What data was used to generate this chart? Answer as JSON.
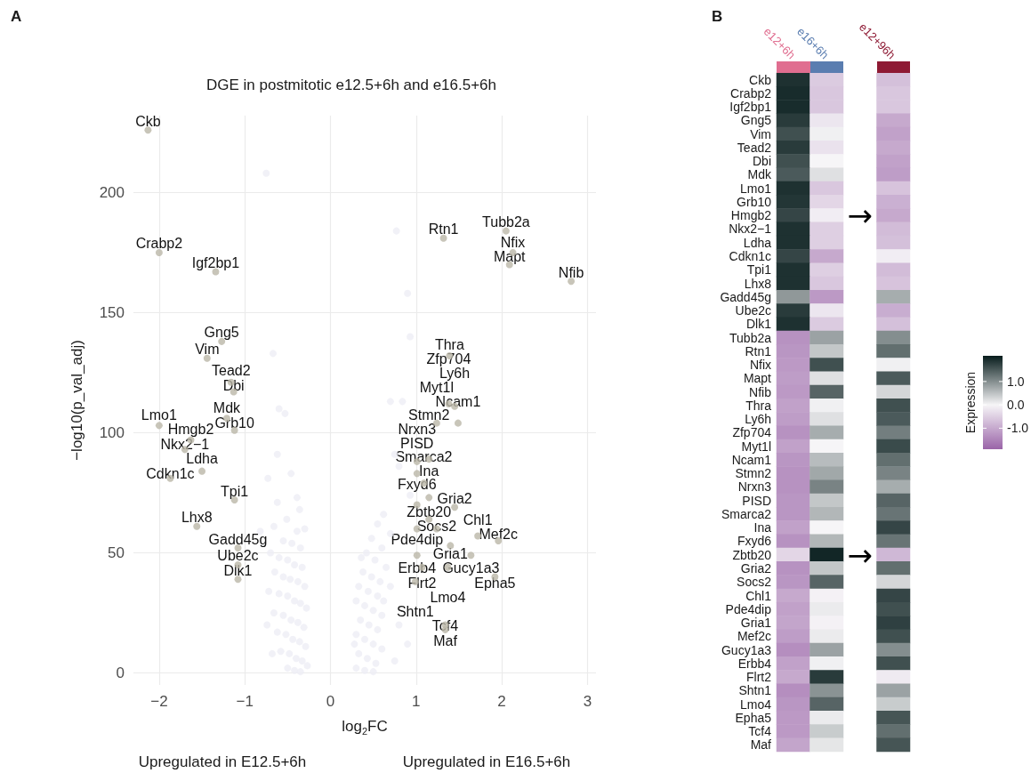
{
  "chart_data": [
    {
      "type": "scatter",
      "title": "DGE in postmitotic e12.5+6h and e16.5+6h",
      "xlabel": "log$_{2}$FC",
      "ylabel": "−log10(p_val_adj)",
      "xlim": [
        -2.3,
        3.1
      ],
      "ylim": [
        -5,
        232
      ],
      "xticks": [
        {
          "value": -2,
          "label": "−2"
        },
        {
          "value": -1,
          "label": "−1"
        },
        0,
        1,
        2,
        3
      ],
      "yticks": [
        0,
        50,
        100,
        150,
        200
      ],
      "grid": true,
      "marker": "circle",
      "series": [
        {
          "color": "#eeedf5",
          "x": [
            -0.75,
            -0.67,
            -0.6,
            -0.53,
            -0.62,
            -0.46,
            -0.73,
            -0.39,
            -0.62,
            -0.51,
            -0.82,
            -0.66,
            -0.39,
            -0.55,
            -0.45,
            -0.35,
            -0.7,
            -0.6,
            -0.5,
            -0.42,
            -0.33,
            -0.65,
            -0.55,
            -0.47,
            -0.38,
            -0.3,
            -0.72,
            -0.6,
            -0.5,
            -0.42,
            -0.35,
            -0.28,
            -0.66,
            -0.55,
            -0.46,
            -0.38,
            -0.31,
            -0.62,
            -0.52,
            -0.44,
            -0.36,
            -0.29,
            -0.58,
            -0.48,
            -0.4,
            -0.33,
            -0.27,
            -0.5,
            -0.42,
            -0.35,
            -0.68,
            -0.74,
            -0.3,
            -0.36,
            0.77,
            0.9,
            0.93,
            0.7,
            0.84,
            0.75,
            0.8,
            0.93,
            0.62,
            0.55,
            0.7,
            0.48,
            0.6,
            0.42,
            0.52,
            0.65,
            0.38,
            0.48,
            0.58,
            0.33,
            0.44,
            0.55,
            0.3,
            0.4,
            0.5,
            0.6,
            0.35,
            0.45,
            0.55,
            0.3,
            0.4,
            0.5,
            0.6,
            0.33,
            0.43,
            0.53,
            0.3,
            0.4,
            0.5,
            0.62,
            0.7,
            0.8,
            0.9,
            0.75,
            0.28,
            0.36
          ],
          "values": [
            208,
            133,
            110,
            108,
            91,
            83,
            81,
            73,
            71,
            64,
            59,
            61,
            59,
            55,
            54,
            52,
            50,
            48,
            47,
            45,
            44,
            42,
            40,
            39,
            38,
            36,
            34,
            33,
            32,
            30,
            29,
            27,
            25,
            24,
            22,
            21,
            19,
            17,
            16,
            14,
            13,
            11,
            9,
            8,
            6,
            5,
            3,
            2,
            1,
            0.5,
            8,
            20,
            60,
            68,
            184,
            158,
            140,
            113,
            113,
            91,
            86,
            74,
            66,
            62,
            58,
            56,
            52,
            50,
            47,
            44,
            42,
            40,
            38,
            36,
            34,
            32,
            30,
            28,
            26,
            24,
            22,
            20,
            18,
            16,
            14,
            12,
            10,
            8,
            6,
            4,
            2,
            1,
            0.5,
            30,
            36,
            20,
            12,
            5,
            12,
            48
          ]
        },
        {
          "color": "#bab6a8",
          "x": [
            -2.13,
            -2.0,
            -1.34,
            -1.27,
            -1.44,
            -1.16,
            -1.13,
            -1.21,
            -1.12,
            -2.0,
            -1.63,
            -1.7,
            -1.5,
            -1.87,
            -1.12,
            -1.56,
            -1.08,
            -1.08,
            -1.08,
            1.32,
            2.05,
            2.13,
            2.09,
            2.81,
            1.39,
            1.38,
            1.45,
            1.24,
            1.49,
            1.15,
            1.01,
            1.01,
            1.09,
            1.15,
            1.01,
            1.45,
            1.15,
            1.24,
            1.01,
            1.4,
            1.72,
            1.96,
            1.01,
            1.64,
            1.37,
            1.07,
            1.92,
            0.99,
            1.34,
            1.34
          ],
          "values": [
            226,
            175,
            167,
            138,
            131,
            121,
            117,
            106,
            101,
            103,
            97,
            93,
            84,
            81,
            72,
            61,
            52,
            45,
            39,
            181,
            184,
            175,
            170,
            163,
            132,
            112,
            111,
            104,
            104,
            89,
            88,
            83,
            79,
            73,
            70,
            69,
            64,
            60,
            60,
            53,
            57,
            55,
            49,
            49,
            44,
            44,
            40,
            38,
            20,
            18
          ]
        }
      ],
      "annotations": [
        "A",
        "Upregulated in E12.5+6h",
        "Upregulated in E16.5+6h",
        {
          "text": "Ckb",
          "x": -2.13,
          "y": 226
        },
        {
          "text": "Crabp2",
          "x": -2.0,
          "y": 175
        },
        {
          "text": "Igf2bp1",
          "x": -1.34,
          "y": 167
        },
        {
          "text": "Gng5",
          "x": -1.27,
          "y": 138
        },
        {
          "text": "Vim",
          "x": -1.44,
          "y": 131
        },
        {
          "text": "Tead2",
          "x": -1.16,
          "y": 121
        },
        {
          "text": "Dbi",
          "x": -1.13,
          "y": 117
        },
        {
          "text": "Mdk",
          "x": -1.21,
          "y": 106
        },
        {
          "text": "Grb10",
          "x": -1.12,
          "y": 101
        },
        {
          "text": "Lmo1",
          "x": -2.0,
          "y": 103
        },
        {
          "text": "Hmgb2",
          "x": -1.63,
          "y": 97
        },
        {
          "text": "Nkx2−1",
          "x": -1.7,
          "y": 93
        },
        {
          "text": "Ldha",
          "x": -1.5,
          "y": 84
        },
        {
          "text": "Cdkn1c",
          "x": -1.87,
          "y": 81
        },
        {
          "text": "Tpi1",
          "x": -1.12,
          "y": 72
        },
        {
          "text": "Lhx8",
          "x": -1.56,
          "y": 61
        },
        {
          "text": "Gadd45g",
          "x": -1.08,
          "y": 52
        },
        {
          "text": "Ube2c",
          "x": -1.08,
          "y": 45
        },
        {
          "text": "Dlk1",
          "x": -1.08,
          "y": 39
        },
        {
          "text": "Rtn1",
          "x": 1.32,
          "y": 181
        },
        {
          "text": "Tubb2a",
          "x": 2.05,
          "y": 184
        },
        {
          "text": "Nfix",
          "x": 2.13,
          "y": 175
        },
        {
          "text": "Mapt",
          "x": 2.09,
          "y": 170
        },
        {
          "text": "Nfib",
          "x": 2.81,
          "y": 163
        },
        {
          "text": "Thra",
          "x": 1.39,
          "y": 132
        },
        {
          "text": "Zfp704",
          "x": 1.38,
          "y": 112
        },
        {
          "text": "Ly6h",
          "x": 1.45,
          "y": 111
        },
        {
          "text": "Myt1l",
          "x": 1.24,
          "y": 104
        },
        {
          "text": "Ncam1",
          "x": 1.49,
          "y": 104
        },
        {
          "text": "Stmn2",
          "x": 1.15,
          "y": 89
        },
        {
          "text": "Nrxn3",
          "x": 1.01,
          "y": 88
        },
        {
          "text": "PISD",
          "x": 1.01,
          "y": 83
        },
        {
          "text": "Smarca2",
          "x": 1.09,
          "y": 79
        },
        {
          "text": "Ina",
          "x": 1.15,
          "y": 73
        },
        {
          "text": "Fxyd6",
          "x": 1.01,
          "y": 70
        },
        {
          "text": "Gria2",
          "x": 1.45,
          "y": 69
        },
        {
          "text": "Zbtb20",
          "x": 1.15,
          "y": 64
        },
        {
          "text": "Socs2",
          "x": 1.24,
          "y": 60
        },
        {
          "text": "Pde4dip",
          "x": 1.01,
          "y": 60
        },
        {
          "text": "Gria1",
          "x": 1.4,
          "y": 53
        },
        {
          "text": "Chl1",
          "x": 1.72,
          "y": 57
        },
        {
          "text": "Mef2c",
          "x": 1.96,
          "y": 55
        },
        {
          "text": "Erbb4",
          "x": 1.01,
          "y": 49
        },
        {
          "text": "Gucy1a3",
          "x": 1.64,
          "y": 49
        },
        {
          "text": "Lmo4",
          "x": 1.37,
          "y": 44
        },
        {
          "text": "Flrt2",
          "x": 1.07,
          "y": 44
        },
        {
          "text": "Epha5",
          "x": 1.92,
          "y": 40
        },
        {
          "text": "Shtn1",
          "x": 0.99,
          "y": 38
        },
        {
          "text": "Tcf4",
          "x": 1.34,
          "y": 20
        },
        {
          "text": "Maf",
          "x": 1.34,
          "y": 18
        }
      ]
    },
    {
      "type": "heatmap",
      "categories": [
        "e12+6h",
        "e16+6h",
        null,
        "e12+96h"
      ],
      "colors": [
        "#e06e90",
        "#5a7db0",
        null,
        "#8e1a34"
      ],
      "y_categories": [
        "Ckb",
        "Crabp2",
        "Igf2bp1",
        "Gng5",
        "Vim",
        "Tead2",
        "Dbi",
        "Mdk",
        "Lmo1",
        "Grb10",
        "Hmgb2",
        "Nkx2−1",
        "Ldha",
        "Cdkn1c",
        "Tpi1",
        "Lhx8",
        "Gadd45g",
        "Ube2c",
        "Dlk1",
        "Tubb2a",
        "Rtn1",
        "Nfix",
        "Mapt",
        "Nfib",
        "Thra",
        "Ly6h",
        "Zfp704",
        "Myt1l",
        "Ncam1",
        "Stmn2",
        "Nrxn3",
        "PISD",
        "Smarca2",
        "Ina",
        "Fxyd6",
        "Zbtb20",
        "Gria2",
        "Socs2",
        "Chl1",
        "Pde4dip",
        "Gria1",
        "Mef2c",
        "Gucy1a3",
        "Erbb4",
        "Flrt2",
        "Shtn1",
        "Lmo4",
        "Epha5",
        "Tcf4",
        "Maf"
      ],
      "cells": [
        [
          1.9,
          -0.55,
          null,
          -0.7
        ],
        [
          1.95,
          -0.6,
          null,
          -0.6
        ],
        [
          1.95,
          -0.6,
          null,
          -0.6
        ],
        [
          1.8,
          -0.2,
          null,
          -1.0
        ],
        [
          1.6,
          0.05,
          null,
          -1.1
        ],
        [
          1.8,
          -0.25,
          null,
          -1.0
        ],
        [
          1.6,
          0,
          null,
          -1.1
        ],
        [
          1.5,
          0.2,
          null,
          -1.15
        ],
        [
          1.9,
          -0.6,
          null,
          -0.65
        ],
        [
          1.85,
          -0.4,
          null,
          -0.9
        ],
        [
          1.7,
          -0.1,
          null,
          -1.0
        ],
        [
          1.9,
          -0.5,
          null,
          -0.75
        ],
        [
          1.9,
          -0.5,
          null,
          -0.7
        ],
        [
          1.7,
          -1.0,
          null,
          -0.1
        ],
        [
          1.9,
          -0.5,
          null,
          -0.75
        ],
        [
          1.9,
          -0.6,
          null,
          -0.65
        ],
        [
          0.9,
          -1.2,
          null,
          0.7
        ],
        [
          1.8,
          -0.2,
          null,
          -0.95
        ],
        [
          1.9,
          -0.55,
          null,
          -0.7
        ],
        [
          -1.3,
          0.8,
          null,
          1.0
        ],
        [
          -1.25,
          0.45,
          null,
          1.3
        ],
        [
          -1.2,
          1.6,
          null,
          0.05
        ],
        [
          -1.15,
          0.2,
          null,
          1.5
        ],
        [
          -1.2,
          1.4,
          null,
          0.3
        ],
        [
          -1.1,
          0.05,
          null,
          1.6
        ],
        [
          -1.15,
          0.2,
          null,
          1.5
        ],
        [
          -1.3,
          0.7,
          null,
          1.15
        ],
        [
          -1.1,
          0,
          null,
          1.65
        ],
        [
          -1.25,
          0.55,
          null,
          1.3
        ],
        [
          -1.3,
          0.75,
          null,
          1.1
        ],
        [
          -1.3,
          1.1,
          null,
          0.7
        ],
        [
          -1.25,
          0.45,
          null,
          1.4
        ],
        [
          -1.25,
          0.6,
          null,
          1.25
        ],
        [
          -1.1,
          0,
          null,
          1.7
        ],
        [
          -1.3,
          0.6,
          null,
          1.25
        ],
        [
          -0.4,
          2.0,
          null,
          -0.8
        ],
        [
          -1.3,
          0.45,
          null,
          1.3
        ],
        [
          -1.25,
          1.4,
          null,
          0.3
        ],
        [
          -1.0,
          -0.05,
          null,
          1.7
        ],
        [
          -1.1,
          0.1,
          null,
          1.6
        ],
        [
          -1.05,
          -0.05,
          null,
          1.75
        ],
        [
          -1.15,
          0.1,
          null,
          1.6
        ],
        [
          -1.35,
          0.8,
          null,
          1.0
        ],
        [
          -1.1,
          0.05,
          null,
          1.6
        ],
        [
          -1.0,
          1.8,
          null,
          -0.15
        ],
        [
          -1.35,
          0.95,
          null,
          0.8
        ],
        [
          -1.25,
          1.4,
          null,
          0.4
        ],
        [
          -1.2,
          0.1,
          null,
          1.55
        ],
        [
          -1.2,
          0.4,
          null,
          1.3
        ],
        [
          -1.05,
          0.15,
          null,
          1.55
        ]
      ],
      "clim": [
        -1.9,
        2.1
      ],
      "cticks": [
        {
          "value": 1,
          "label": "1.0"
        },
        {
          "value": 0,
          "label": "0.0"
        },
        {
          "value": -1,
          "label": "-1.0"
        }
      ],
      "clabel": "Expression",
      "annotations": [
        "B",
        "→",
        "→"
      ]
    }
  ]
}
